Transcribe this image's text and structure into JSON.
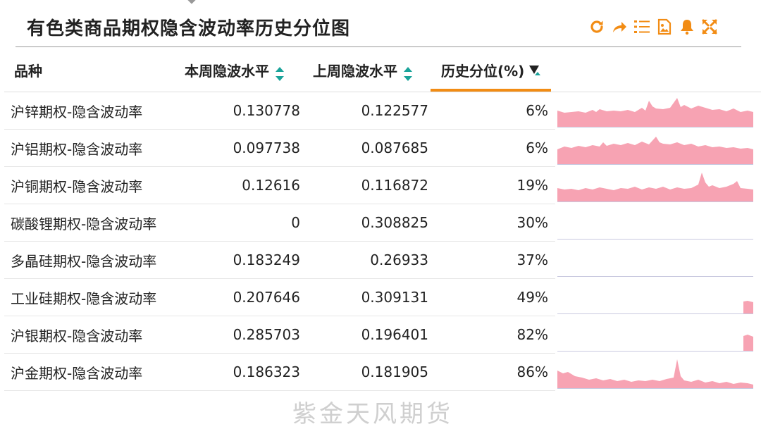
{
  "header": {
    "title": "有色类商品期权隐含波动率历史分位图"
  },
  "toolbar": {
    "accent_color": "#f28c14",
    "icons": [
      "refresh-icon",
      "share-icon",
      "list-icon",
      "image-icon",
      "bell-icon",
      "fullscreen-icon"
    ]
  },
  "table": {
    "columns": {
      "name": "品种",
      "current": "本周隐波水平",
      "previous": "上周隐波水平",
      "percentile": "历史分位(%)"
    },
    "sort_colors": {
      "teal": "#1aa39a",
      "active": "#f28c14"
    },
    "sparkline_color": "#f7a3b3",
    "rows": [
      {
        "name": "沪锌期权-隐含波动率",
        "current": "0.130778",
        "previous": "0.122577",
        "percentile": "6%"
      },
      {
        "name": "沪铝期权-隐含波动率",
        "current": "0.097738",
        "previous": "0.087685",
        "percentile": "6%"
      },
      {
        "name": "沪铜期权-隐含波动率",
        "current": "0.12616",
        "previous": "0.116872",
        "percentile": "19%"
      },
      {
        "name": "碳酸锂期权-隐含波动率",
        "current": "0",
        "previous": "0.308825",
        "percentile": "30%"
      },
      {
        "name": "多晶硅期权-隐含波动率",
        "current": "0.183249",
        "previous": "0.26933",
        "percentile": "37%"
      },
      {
        "name": "工业硅期权-隐含波动率",
        "current": "0.207646",
        "previous": "0.309131",
        "percentile": "49%"
      },
      {
        "name": "沪银期权-隐含波动率",
        "current": "0.285703",
        "previous": "0.196401",
        "percentile": "82%"
      },
      {
        "name": "沪金期权-隐含波动率",
        "current": "0.186323",
        "previous": "0.181905",
        "percentile": "86%"
      }
    ]
  },
  "watermark": "紫金天风期货"
}
